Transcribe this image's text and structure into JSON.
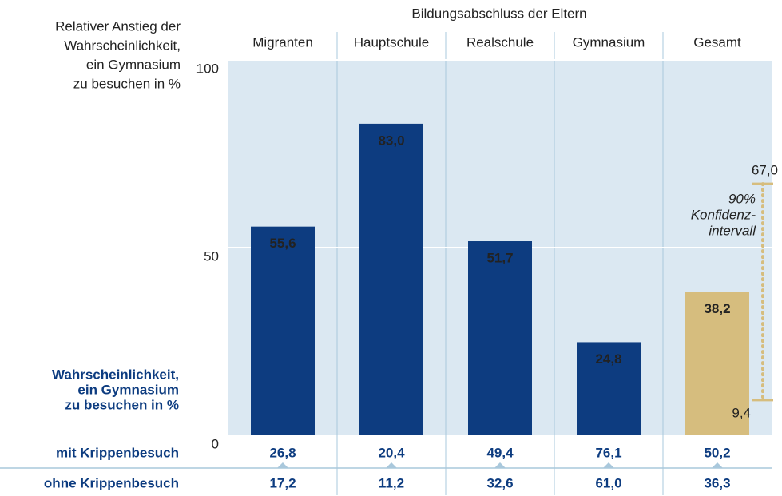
{
  "chart_data": {
    "type": "bar",
    "title": "Bildungsabschluss der Eltern",
    "ylabel": [
      "Relativer Anstieg der",
      "Wahrscheinlichkeit,",
      "ein Gymnasium",
      "zu besuchen in %"
    ],
    "categories": [
      "Migranten",
      "Hauptschule",
      "Realschule",
      "Gymnasium",
      "Gesamt"
    ],
    "values": [
      55.6,
      83.0,
      51.7,
      24.8,
      38.2
    ],
    "value_labels": [
      "55,6",
      "83,0",
      "51,7",
      "24,8",
      "38,2"
    ],
    "colors": [
      "#0d3c80",
      "#0d3c80",
      "#0d3c80",
      "#0d3c80",
      "#d6bd7e"
    ],
    "ylim": [
      0,
      100
    ],
    "yticks": [
      0,
      50,
      100
    ],
    "grid": true,
    "confidence_interval": {
      "values": [
        9.4,
        67.0
      ],
      "value_labels": [
        "9,4",
        "67,0"
      ],
      "label": [
        "90%",
        "Konfidenz-",
        "intervall"
      ],
      "color": "#d6bd7e"
    },
    "table_label": [
      "Wahrscheinlichkeit,",
      "ein Gymnasium",
      "zu besuchen in %"
    ],
    "rows": [
      {
        "name": "mit Krippenbesuch",
        "values": [
          26.8,
          20.4,
          49.4,
          76.1,
          50.2
        ],
        "value_labels": [
          "26,8",
          "20,4",
          "49,4",
          "76,1",
          "50,2"
        ]
      },
      {
        "name": "ohne Krippenbesuch",
        "values": [
          17.2,
          11.2,
          32.6,
          61.0,
          36.3
        ],
        "value_labels": [
          "17,2",
          "11,2",
          "32,6",
          "61,0",
          "36,3"
        ]
      }
    ]
  }
}
